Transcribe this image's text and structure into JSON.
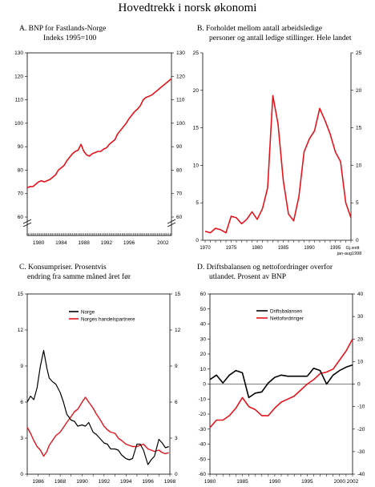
{
  "page_title": "Hovedtrekk i norsk økonomi",
  "panels": {
    "A": {
      "title_line1": "A.   BNP for Fastlands-Norge",
      "title_line2": "Indeks 1995=100"
    },
    "B": {
      "title_line1": "B.  Forholdet mellom antall arbeidsledige",
      "title_line2": "personer og antall ledige stillinger. Hele landet"
    },
    "C": {
      "title_line1": "C.  Konsumpriser. Prosentvis",
      "title_line2": "endring fra samme måned året før"
    },
    "D": {
      "title_line1": "D.  Driftsbalansen og nettofordringer overfor",
      "title_line2": "utlandet. Prosent av BNP"
    }
  },
  "colors": {
    "red": "#e5141b",
    "black": "#000000"
  },
  "chart_data": [
    {
      "id": "A",
      "type": "line",
      "title": "BNP for Fastlands-Norge",
      "subtitle": "Indeks 1995=100",
      "ylim": [
        60,
        130
      ],
      "yticks": [
        60,
        70,
        80,
        90,
        100,
        110,
        120,
        130
      ],
      "axis_break": true,
      "xlim": [
        1978,
        2003.5
      ],
      "xticks": [
        1980,
        1984,
        1988,
        1992,
        1996,
        2002
      ],
      "series": [
        {
          "color": "#e5141b",
          "x": [
            1978,
            1978.5,
            1979,
            1979.5,
            1980,
            1980.5,
            1981,
            1981.5,
            1982,
            1982.5,
            1983,
            1983.5,
            1984,
            1984.5,
            1985,
            1985.5,
            1986,
            1986.5,
            1987,
            1987.5,
            1988,
            1988.5,
            1989,
            1989.5,
            1990,
            1990.5,
            1991,
            1991.5,
            1992,
            1992.5,
            1993,
            1993.5,
            1994,
            1994.5,
            1995,
            1995.5,
            1996,
            1996.5,
            1997,
            1997.5,
            1998,
            1998.5,
            1999,
            1999.5,
            2000,
            2000.5,
            2001,
            2001.5,
            2002,
            2002.5,
            2003,
            2003.5
          ],
          "y": [
            72.5,
            73,
            73,
            74,
            75,
            75.5,
            75,
            75.5,
            76,
            77,
            78,
            80,
            81,
            82,
            84,
            85.5,
            87,
            88,
            88.5,
            91,
            88,
            86.5,
            86,
            87,
            87.5,
            88,
            88,
            89,
            89.5,
            91,
            92,
            93,
            95.5,
            97,
            98.5,
            100,
            102,
            103.5,
            105,
            106,
            107.5,
            110,
            111,
            111.5,
            112,
            113,
            114,
            115,
            116,
            117,
            118,
            119
          ]
        }
      ]
    },
    {
      "id": "B",
      "type": "line",
      "title": "Forholdet mellom antall arbeidsledige personer og antall ledige stillinger. Hele landet",
      "ylim": [
        0,
        25
      ],
      "yticks": [
        0,
        5,
        10,
        15,
        20,
        25
      ],
      "x_categories": [
        "1970",
        "1975",
        "1980",
        "1985",
        "1990",
        "1995",
        "Gj.snitt jan-aug1998"
      ],
      "series": [
        {
          "color": "#e5141b",
          "x": [
            1970,
            1971,
            1972,
            1973,
            1974,
            1975,
            1976,
            1977,
            1978,
            1979,
            1980,
            1981,
            1982,
            1983,
            1984,
            1985,
            1986,
            1987,
            1988,
            1989,
            1990,
            1991,
            1992,
            1993,
            1994,
            1995,
            1996,
            1997,
            1998
          ],
          "y": [
            1.2,
            1.0,
            1.6,
            1.4,
            1.0,
            3.2,
            3.0,
            2.2,
            2.8,
            3.8,
            2.8,
            4.2,
            7.0,
            19.3,
            15.5,
            8.0,
            3.5,
            2.6,
            5.8,
            11.8,
            13.5,
            14.6,
            17.6,
            16.0,
            14.2,
            11.8,
            10.5,
            5.0,
            3.0
          ]
        }
      ]
    },
    {
      "id": "C",
      "type": "line",
      "title": "Konsumpriser. Prosentvis endring fra samme måned året før",
      "ylim": [
        0,
        15
      ],
      "yticks": [
        0,
        3,
        6,
        9,
        12,
        15
      ],
      "xlim": [
        1985,
        1998
      ],
      "xticks": [
        1986,
        1988,
        1990,
        1992,
        1994,
        1996,
        1998
      ],
      "legend": "top-center",
      "series": [
        {
          "name": "Norge",
          "color": "#000000",
          "x": [
            1985,
            1985.3,
            1985.6,
            1985.9,
            1986.2,
            1986.5,
            1986.8,
            1987.0,
            1987.3,
            1987.6,
            1988.0,
            1988.3,
            1988.6,
            1989.0,
            1989.3,
            1989.6,
            1990.0,
            1990.3,
            1990.6,
            1991.0,
            1991.3,
            1991.6,
            1992.0,
            1992.3,
            1992.6,
            1993.0,
            1993.3,
            1993.6,
            1994.0,
            1994.3,
            1994.6,
            1995.0,
            1995.3,
            1995.6,
            1996.0,
            1996.3,
            1996.6,
            1997.0,
            1997.3,
            1997.6,
            1997.9
          ],
          "y": [
            6.0,
            6.5,
            6.2,
            7.2,
            9.0,
            10.3,
            8.8,
            8.0,
            7.7,
            7.5,
            6.8,
            6.0,
            5.0,
            4.5,
            4.4,
            4.0,
            4.1,
            4.0,
            4.3,
            3.5,
            3.3,
            3.0,
            2.6,
            2.5,
            2.1,
            2.1,
            2.0,
            1.6,
            1.3,
            1.2,
            1.3,
            2.5,
            2.5,
            2.0,
            0.8,
            1.2,
            1.5,
            2.9,
            2.6,
            2.2,
            2.3
          ]
        },
        {
          "name": "Norges handelspartnere",
          "color": "#e5141b",
          "x": [
            1985,
            1985.3,
            1985.6,
            1985.9,
            1986.2,
            1986.5,
            1986.8,
            1987.0,
            1987.3,
            1987.6,
            1988.0,
            1988.3,
            1988.6,
            1989.0,
            1989.3,
            1989.6,
            1990.0,
            1990.3,
            1990.6,
            1991.0,
            1991.3,
            1991.6,
            1992.0,
            1992.3,
            1992.6,
            1993.0,
            1993.3,
            1993.6,
            1994.0,
            1994.3,
            1994.6,
            1995.0,
            1995.3,
            1995.6,
            1996.0,
            1996.3,
            1996.6,
            1997.0,
            1997.3,
            1997.6,
            1997.9
          ],
          "y": [
            3.9,
            3.4,
            2.8,
            2.3,
            2.0,
            1.5,
            1.9,
            2.4,
            2.8,
            3.2,
            3.5,
            3.9,
            4.3,
            4.8,
            5.2,
            5.4,
            6.0,
            6.4,
            6.0,
            5.5,
            5.0,
            4.6,
            4.0,
            3.7,
            3.5,
            3.4,
            3.0,
            2.8,
            2.5,
            2.4,
            2.3,
            2.3,
            2.4,
            2.5,
            2.1,
            2.0,
            1.9,
            2.0,
            1.8,
            1.7,
            1.8
          ]
        }
      ]
    },
    {
      "id": "D",
      "type": "line",
      "title": "Driftsbalansen og nettofordringer overfor utlandet. Prosent av BNP",
      "ylim_left": [
        -60,
        60
      ],
      "yticks_left": [
        -60,
        -50,
        -40,
        -30,
        -20,
        -10,
        0,
        10,
        20,
        30,
        40,
        50,
        60
      ],
      "ylim_right": [
        -40,
        40
      ],
      "yticks_right": [
        -40,
        -30,
        -20,
        -10,
        0,
        10,
        20,
        30,
        40
      ],
      "xlim": [
        1980,
        2002
      ],
      "xticks": [
        1980,
        1985,
        1990,
        1995,
        2000,
        2002
      ],
      "legend": "top-left",
      "series": [
        {
          "name": "Driftsbalansen",
          "color": "#000000",
          "x": [
            1980,
            1981,
            1982,
            1983,
            1984,
            1985,
            1986,
            1987,
            1988,
            1989,
            1990,
            1991,
            1992,
            1993,
            1994,
            1995,
            1996,
            1997,
            1998,
            1999,
            2000,
            2001,
            2002
          ],
          "y": [
            2,
            4,
            0.5,
            4,
            6,
            5,
            -6,
            -4,
            -3.5,
            0.5,
            3,
            4,
            3.5,
            3.5,
            3.5,
            3.5,
            7,
            6,
            0,
            4,
            6,
            7.5,
            8.5
          ]
        },
        {
          "name": "Nettofordringer",
          "color": "#e5141b",
          "x": [
            1980,
            1981,
            1982,
            1983,
            1984,
            1985,
            1986,
            1987,
            1988,
            1989,
            1990,
            1991,
            1992,
            1993,
            1994,
            1995,
            1996,
            1997,
            1998,
            1999,
            2000,
            2001,
            2002
          ],
          "y": [
            -29,
            -24,
            -24,
            -21,
            -16,
            -9,
            -15,
            -17,
            -21,
            -21,
            -16,
            -12,
            -10,
            -8,
            -4,
            0,
            3,
            7,
            8,
            10,
            16,
            22,
            30
          ]
        }
      ]
    }
  ]
}
